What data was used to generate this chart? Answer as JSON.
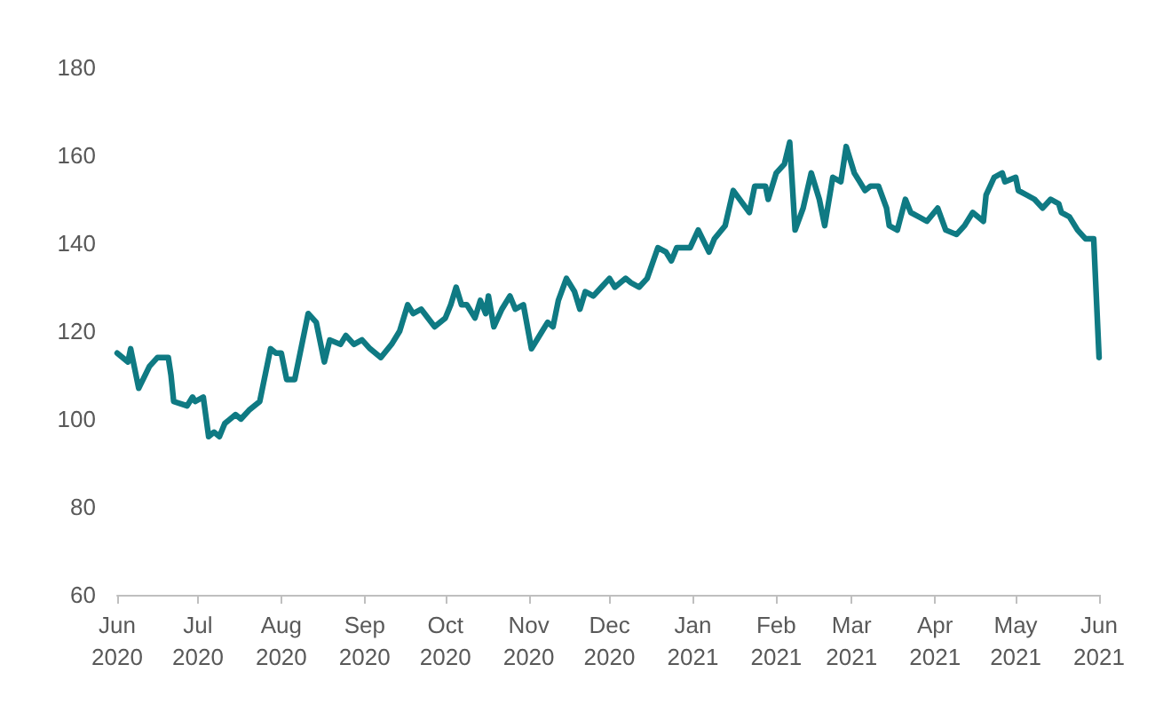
{
  "chart_data": {
    "type": "line",
    "marker": "none",
    "line_style": "solid",
    "grid": false,
    "xlim": [
      "2020-06-01",
      "2021-06-01"
    ],
    "xticks": [
      {
        "value": "2020-06-01",
        "label": "Jun\n2020"
      },
      {
        "value": "2020-07-01",
        "label": "Jul\n2020"
      },
      {
        "value": "2020-08-01",
        "label": "Aug\n2020"
      },
      {
        "value": "2020-09-01",
        "label": "Sep\n2020"
      },
      {
        "value": "2020-10-01",
        "label": "Oct\n2020"
      },
      {
        "value": "2020-11-01",
        "label": "Nov\n2020"
      },
      {
        "value": "2020-12-01",
        "label": "Dec\n2020"
      },
      {
        "value": "2021-01-01",
        "label": "Jan\n2021"
      },
      {
        "value": "2021-02-01",
        "label": "Feb\n2021"
      },
      {
        "value": "2021-03-01",
        "label": "Mar\n2021"
      },
      {
        "value": "2021-04-01",
        "label": "Apr\n2021"
      },
      {
        "value": "2021-05-01",
        "label": "May\n2021"
      },
      {
        "value": "2021-06-01",
        "label": "Jun\n2021"
      }
    ],
    "ylim": [
      60,
      180
    ],
    "yticks": [
      60,
      80,
      100,
      120,
      140,
      160,
      180
    ],
    "x": [
      "2020-06-01",
      "2020-06-03",
      "2020-06-05",
      "2020-06-06",
      "2020-06-09",
      "2020-06-13",
      "2020-06-16",
      "2020-06-20",
      "2020-06-21",
      "2020-06-22",
      "2020-06-27",
      "2020-06-29",
      "2020-06-30",
      "2020-07-03",
      "2020-07-05",
      "2020-07-07",
      "2020-07-09",
      "2020-07-11",
      "2020-07-15",
      "2020-07-17",
      "2020-07-20",
      "2020-07-24",
      "2020-07-28",
      "2020-07-30",
      "2020-08-01",
      "2020-08-03",
      "2020-08-06",
      "2020-08-11",
      "2020-08-14",
      "2020-08-17",
      "2020-08-19",
      "2020-08-23",
      "2020-08-25",
      "2020-08-28",
      "2020-08-31",
      "2020-09-03",
      "2020-09-07",
      "2020-09-11",
      "2020-09-14",
      "2020-09-17",
      "2020-09-19",
      "2020-09-22",
      "2020-09-27",
      "2020-10-01",
      "2020-10-03",
      "2020-10-05",
      "2020-10-07",
      "2020-10-09",
      "2020-10-12",
      "2020-10-14",
      "2020-10-16",
      "2020-10-17",
      "2020-10-19",
      "2020-10-22",
      "2020-10-25",
      "2020-10-27",
      "2020-10-30",
      "2020-11-02",
      "2020-11-06",
      "2020-11-08",
      "2020-11-10",
      "2020-11-12",
      "2020-11-15",
      "2020-11-18",
      "2020-11-20",
      "2020-11-22",
      "2020-11-25",
      "2020-11-28",
      "2020-12-01",
      "2020-12-03",
      "2020-12-07",
      "2020-12-09",
      "2020-12-12",
      "2020-12-15",
      "2020-12-19",
      "2020-12-22",
      "2020-12-24",
      "2020-12-26",
      "2020-12-31",
      "2021-01-03",
      "2021-01-07",
      "2021-01-09",
      "2021-01-13",
      "2021-01-16",
      "2021-01-22",
      "2021-01-24",
      "2021-01-28",
      "2021-01-29",
      "2021-02-01",
      "2021-02-04",
      "2021-02-06",
      "2021-02-08",
      "2021-02-11",
      "2021-02-14",
      "2021-02-17",
      "2021-02-19",
      "2021-02-22",
      "2021-02-25",
      "2021-02-27",
      "2021-03-02",
      "2021-03-04",
      "2021-03-06",
      "2021-03-08",
      "2021-03-11",
      "2021-03-14",
      "2021-03-15",
      "2021-03-18",
      "2021-03-21",
      "2021-03-23",
      "2021-03-26",
      "2021-03-29",
      "2021-04-02",
      "2021-04-05",
      "2021-04-09",
      "2021-04-12",
      "2021-04-15",
      "2021-04-19",
      "2021-04-20",
      "2021-04-23",
      "2021-04-26",
      "2021-04-27",
      "2021-05-01",
      "2021-05-02",
      "2021-05-05",
      "2021-05-08",
      "2021-05-11",
      "2021-05-14",
      "2021-05-17",
      "2021-05-18",
      "2021-05-21",
      "2021-05-24",
      "2021-05-27",
      "2021-05-30",
      "2021-06-01"
    ],
    "series": [
      {
        "color": "#0f7a83",
        "values": [
          115,
          114,
          113,
          116,
          107,
          112,
          114,
          114,
          110,
          104,
          103,
          105,
          104,
          105,
          96,
          97,
          96,
          99,
          101,
          100,
          102,
          104,
          116,
          115,
          115,
          109,
          109,
          124,
          122,
          113,
          118,
          117,
          119,
          117,
          118,
          116,
          114,
          117,
          120,
          126,
          124,
          125,
          121,
          123,
          126,
          130,
          126,
          126,
          123,
          127,
          124,
          128,
          121,
          125,
          128,
          125,
          126,
          116,
          120,
          122,
          121,
          127,
          132,
          129,
          125,
          129,
          128,
          130,
          132,
          130,
          132,
          131,
          130,
          132,
          139,
          138,
          136,
          139,
          139,
          143,
          138,
          141,
          144,
          152,
          147,
          153,
          153,
          150,
          156,
          158,
          163,
          143,
          148,
          156,
          150,
          144,
          155,
          154,
          162,
          156,
          154,
          152,
          153,
          153,
          148,
          144,
          143,
          150,
          147,
          146,
          145,
          148,
          143,
          142,
          144,
          147,
          145,
          151,
          155,
          156,
          154,
          155,
          152,
          151,
          150,
          148,
          150,
          149,
          147,
          146,
          143,
          141,
          141,
          114
        ]
      }
    ]
  }
}
